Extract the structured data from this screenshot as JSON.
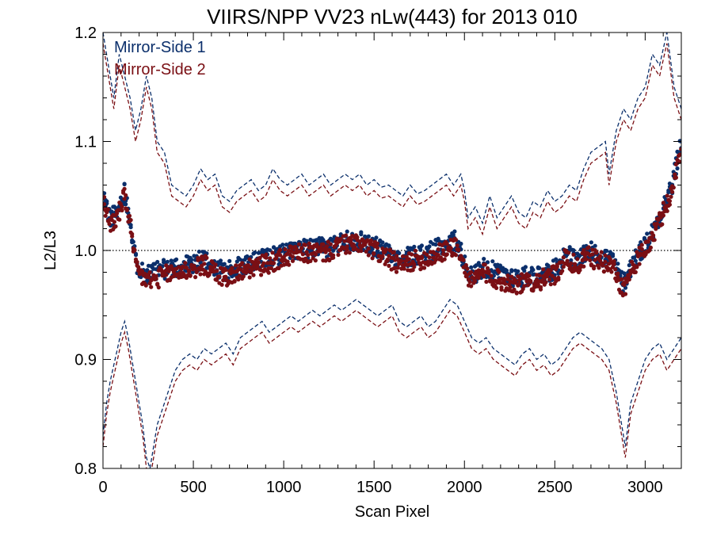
{
  "chart_data": {
    "type": "scatter",
    "title": "VIIRS/NPP VV23 nLw(443) for 2013 010",
    "xlabel": "Scan Pixel",
    "ylabel": "L2/L3",
    "xlim": [
      0,
      3200
    ],
    "ylim": [
      0.8,
      1.2
    ],
    "x_ticks": [
      0,
      500,
      1000,
      1500,
      2000,
      2500,
      3000
    ],
    "y_ticks": [
      0.8,
      0.9,
      1.0,
      1.1,
      1.2
    ],
    "y_tick_labels": [
      "0.8",
      "0.9",
      "1.0",
      "1.1",
      "1.2"
    ],
    "reference_line": {
      "y": 1.0,
      "style": "dotted"
    },
    "legend_position": "top-left",
    "grid": false,
    "series": [
      {
        "name": "Mirror-Side 1",
        "color": "#0b2f6b",
        "mean": {
          "x": [
            0,
            40,
            80,
            120,
            150,
            180,
            220,
            270,
            320,
            400,
            500,
            560,
            620,
            680,
            750,
            850,
            950,
            1050,
            1150,
            1250,
            1350,
            1450,
            1550,
            1650,
            1700,
            1800,
            1900,
            1950,
            2000,
            2040,
            2100,
            2200,
            2300,
            2400,
            2500,
            2560,
            2620,
            2680,
            2750,
            2820,
            2860,
            2880,
            2950,
            3000,
            3050,
            3100,
            3150,
            3200
          ],
          "y": [
            1.05,
            1.03,
            1.035,
            1.055,
            1.03,
            0.99,
            0.98,
            0.978,
            0.982,
            0.985,
            0.988,
            0.992,
            0.985,
            0.98,
            0.985,
            0.99,
            0.995,
            1.0,
            1.002,
            1.003,
            1.01,
            1.008,
            1.0,
            0.99,
            0.995,
            0.998,
            1.005,
            1.01,
            0.99,
            0.975,
            0.985,
            0.978,
            0.975,
            0.978,
            0.982,
            0.998,
            0.99,
            1.0,
            0.995,
            0.992,
            0.975,
            0.97,
            0.995,
            1.005,
            1.02,
            1.04,
            1.06,
            1.1
          ]
        },
        "upper": {
          "x": [
            0,
            30,
            60,
            90,
            120,
            150,
            180,
            210,
            240,
            270,
            300,
            340,
            380,
            420,
            460,
            500,
            540,
            580,
            620,
            660,
            700,
            740,
            780,
            820,
            860,
            900,
            940,
            980,
            1020,
            1060,
            1100,
            1140,
            1180,
            1220,
            1260,
            1300,
            1340,
            1380,
            1420,
            1460,
            1500,
            1540,
            1580,
            1620,
            1660,
            1700,
            1740,
            1780,
            1820,
            1860,
            1900,
            1940,
            1980,
            2000,
            2020,
            2060,
            2100,
            2140,
            2180,
            2220,
            2260,
            2300,
            2340,
            2380,
            2420,
            2460,
            2500,
            2540,
            2580,
            2620,
            2660,
            2700,
            2740,
            2780,
            2800,
            2840,
            2880,
            2920,
            2960,
            3000,
            3040,
            3080,
            3120,
            3160,
            3200
          ],
          "y": [
            1.2,
            1.17,
            1.14,
            1.18,
            1.16,
            1.14,
            1.11,
            1.13,
            1.16,
            1.14,
            1.1,
            1.09,
            1.06,
            1.055,
            1.05,
            1.06,
            1.075,
            1.065,
            1.07,
            1.05,
            1.045,
            1.055,
            1.06,
            1.065,
            1.055,
            1.06,
            1.075,
            1.065,
            1.06,
            1.065,
            1.07,
            1.06,
            1.065,
            1.07,
            1.06,
            1.065,
            1.07,
            1.065,
            1.07,
            1.06,
            1.065,
            1.058,
            1.06,
            1.055,
            1.05,
            1.06,
            1.052,
            1.055,
            1.06,
            1.065,
            1.07,
            1.06,
            1.07,
            1.055,
            1.03,
            1.04,
            1.025,
            1.05,
            1.03,
            1.04,
            1.05,
            1.035,
            1.03,
            1.045,
            1.04,
            1.055,
            1.045,
            1.05,
            1.06,
            1.055,
            1.075,
            1.09,
            1.095,
            1.1,
            1.07,
            1.11,
            1.13,
            1.12,
            1.14,
            1.15,
            1.18,
            1.17,
            1.2,
            1.15,
            1.13
          ]
        },
        "lower": {
          "x": [
            0,
            20,
            40,
            60,
            80,
            100,
            120,
            140,
            160,
            180,
            200,
            220,
            240,
            260,
            280,
            300,
            330,
            360,
            400,
            440,
            480,
            520,
            560,
            600,
            640,
            680,
            720,
            760,
            800,
            840,
            880,
            920,
            960,
            1000,
            1040,
            1080,
            1120,
            1160,
            1200,
            1240,
            1280,
            1320,
            1360,
            1400,
            1440,
            1480,
            1520,
            1560,
            1600,
            1640,
            1680,
            1720,
            1760,
            1800,
            1840,
            1880,
            1920,
            1960,
            2000,
            2040,
            2080,
            2120,
            2160,
            2200,
            2240,
            2280,
            2320,
            2360,
            2400,
            2440,
            2480,
            2520,
            2560,
            2600,
            2640,
            2680,
            2720,
            2760,
            2800,
            2840,
            2870,
            2890,
            2920,
            2960,
            3000,
            3040,
            3080,
            3120,
            3160,
            3200
          ],
          "y": [
            0.83,
            0.86,
            0.88,
            0.895,
            0.91,
            0.925,
            0.935,
            0.92,
            0.9,
            0.88,
            0.86,
            0.84,
            0.81,
            0.8,
            0.82,
            0.84,
            0.855,
            0.87,
            0.89,
            0.9,
            0.905,
            0.9,
            0.91,
            0.905,
            0.91,
            0.915,
            0.905,
            0.92,
            0.925,
            0.93,
            0.935,
            0.925,
            0.93,
            0.935,
            0.94,
            0.935,
            0.94,
            0.945,
            0.94,
            0.945,
            0.95,
            0.945,
            0.95,
            0.955,
            0.95,
            0.945,
            0.94,
            0.945,
            0.95,
            0.935,
            0.93,
            0.935,
            0.94,
            0.93,
            0.935,
            0.945,
            0.955,
            0.95,
            0.935,
            0.92,
            0.915,
            0.92,
            0.91,
            0.905,
            0.9,
            0.895,
            0.905,
            0.91,
            0.9,
            0.905,
            0.895,
            0.9,
            0.91,
            0.92,
            0.925,
            0.92,
            0.915,
            0.91,
            0.9,
            0.87,
            0.84,
            0.82,
            0.86,
            0.88,
            0.9,
            0.91,
            0.915,
            0.9,
            0.91,
            0.92
          ]
        }
      },
      {
        "name": "Mirror-Side 2",
        "color": "#7a0f14",
        "mean": {
          "x": [
            0,
            40,
            80,
            120,
            150,
            180,
            220,
            270,
            320,
            400,
            500,
            560,
            620,
            680,
            750,
            850,
            950,
            1050,
            1150,
            1250,
            1350,
            1450,
            1550,
            1650,
            1700,
            1800,
            1900,
            1950,
            2000,
            2040,
            2100,
            2200,
            2300,
            2400,
            2500,
            2560,
            2620,
            2680,
            2750,
            2820,
            2860,
            2880,
            2950,
            3000,
            3050,
            3100,
            3150,
            3200
          ],
          "y": [
            1.045,
            1.025,
            1.03,
            1.05,
            1.025,
            0.985,
            0.975,
            0.972,
            0.976,
            0.98,
            0.983,
            0.987,
            0.98,
            0.975,
            0.98,
            0.985,
            0.99,
            0.996,
            0.998,
            0.999,
            1.006,
            1.004,
            0.996,
            0.985,
            0.99,
            0.993,
            1.0,
            1.005,
            0.985,
            0.97,
            0.98,
            0.972,
            0.969,
            0.972,
            0.977,
            0.993,
            0.985,
            0.995,
            0.99,
            0.986,
            0.97,
            0.965,
            0.99,
            1.0,
            1.015,
            1.035,
            1.055,
            1.095
          ]
        },
        "upper": {
          "x": [
            0,
            30,
            60,
            90,
            120,
            150,
            180,
            210,
            240,
            270,
            300,
            340,
            380,
            420,
            460,
            500,
            540,
            580,
            620,
            660,
            700,
            740,
            780,
            820,
            860,
            900,
            940,
            980,
            1020,
            1060,
            1100,
            1140,
            1180,
            1220,
            1260,
            1300,
            1340,
            1380,
            1420,
            1460,
            1500,
            1540,
            1580,
            1620,
            1660,
            1700,
            1740,
            1780,
            1820,
            1860,
            1900,
            1940,
            1980,
            2000,
            2020,
            2060,
            2100,
            2140,
            2180,
            2220,
            2260,
            2300,
            2340,
            2380,
            2420,
            2460,
            2500,
            2540,
            2580,
            2620,
            2660,
            2700,
            2740,
            2780,
            2800,
            2840,
            2880,
            2920,
            2960,
            3000,
            3040,
            3080,
            3120,
            3160,
            3200
          ],
          "y": [
            1.19,
            1.16,
            1.13,
            1.17,
            1.15,
            1.13,
            1.1,
            1.12,
            1.15,
            1.13,
            1.09,
            1.08,
            1.05,
            1.045,
            1.04,
            1.05,
            1.065,
            1.055,
            1.06,
            1.04,
            1.035,
            1.045,
            1.05,
            1.055,
            1.045,
            1.05,
            1.065,
            1.055,
            1.05,
            1.055,
            1.06,
            1.05,
            1.055,
            1.06,
            1.05,
            1.055,
            1.06,
            1.055,
            1.06,
            1.05,
            1.055,
            1.048,
            1.05,
            1.045,
            1.04,
            1.05,
            1.042,
            1.045,
            1.05,
            1.055,
            1.06,
            1.05,
            1.06,
            1.045,
            1.02,
            1.03,
            1.015,
            1.04,
            1.02,
            1.03,
            1.04,
            1.025,
            1.02,
            1.035,
            1.03,
            1.045,
            1.035,
            1.04,
            1.05,
            1.045,
            1.065,
            1.08,
            1.085,
            1.09,
            1.06,
            1.1,
            1.12,
            1.11,
            1.13,
            1.14,
            1.17,
            1.16,
            1.19,
            1.14,
            1.12
          ]
        },
        "lower": {
          "x": [
            0,
            20,
            40,
            60,
            80,
            100,
            120,
            140,
            160,
            180,
            200,
            220,
            240,
            260,
            280,
            300,
            330,
            360,
            400,
            440,
            480,
            520,
            560,
            600,
            640,
            680,
            720,
            760,
            800,
            840,
            880,
            920,
            960,
            1000,
            1040,
            1080,
            1120,
            1160,
            1200,
            1240,
            1280,
            1320,
            1360,
            1400,
            1440,
            1480,
            1520,
            1560,
            1600,
            1640,
            1680,
            1720,
            1760,
            1800,
            1840,
            1880,
            1920,
            1960,
            2000,
            2040,
            2080,
            2120,
            2160,
            2200,
            2240,
            2280,
            2320,
            2360,
            2400,
            2440,
            2480,
            2520,
            2560,
            2600,
            2640,
            2680,
            2720,
            2760,
            2800,
            2840,
            2870,
            2890,
            2920,
            2960,
            3000,
            3040,
            3080,
            3120,
            3160,
            3200
          ],
          "y": [
            0.82,
            0.85,
            0.87,
            0.885,
            0.9,
            0.915,
            0.925,
            0.91,
            0.89,
            0.87,
            0.85,
            0.83,
            0.8,
            0.79,
            0.81,
            0.83,
            0.845,
            0.86,
            0.88,
            0.89,
            0.895,
            0.89,
            0.9,
            0.895,
            0.9,
            0.905,
            0.895,
            0.91,
            0.915,
            0.92,
            0.925,
            0.915,
            0.92,
            0.925,
            0.93,
            0.925,
            0.93,
            0.935,
            0.93,
            0.935,
            0.94,
            0.935,
            0.94,
            0.945,
            0.94,
            0.935,
            0.93,
            0.935,
            0.94,
            0.925,
            0.92,
            0.925,
            0.93,
            0.92,
            0.925,
            0.935,
            0.945,
            0.94,
            0.925,
            0.91,
            0.905,
            0.91,
            0.9,
            0.895,
            0.89,
            0.885,
            0.895,
            0.9,
            0.89,
            0.895,
            0.885,
            0.89,
            0.9,
            0.91,
            0.915,
            0.91,
            0.905,
            0.9,
            0.89,
            0.86,
            0.83,
            0.81,
            0.85,
            0.87,
            0.89,
            0.9,
            0.905,
            0.89,
            0.9,
            0.91
          ]
        }
      }
    ]
  }
}
